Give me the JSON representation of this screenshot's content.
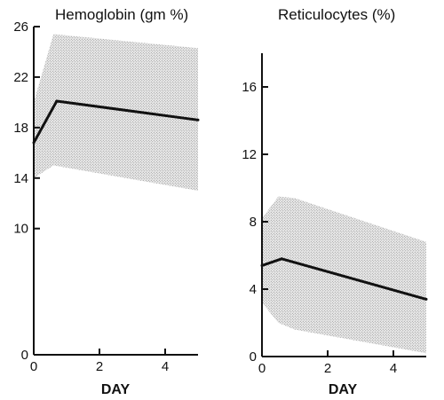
{
  "chart_data": [
    {
      "type": "area",
      "title": "Hemoglobin (gm %)",
      "xlabel": "DAY",
      "ylabel": "",
      "xlim": [
        0,
        5
      ],
      "ylim": [
        0,
        26
      ],
      "xticks": [
        0,
        2,
        4
      ],
      "yticks": [
        0,
        10,
        14,
        18,
        22,
        26
      ],
      "grid": false,
      "series": [
        {
          "x": [
            0,
            0.7,
            5
          ],
          "values": [
            16.8,
            20.1,
            18.6
          ]
        }
      ],
      "band": {
        "x": [
          0,
          0.6,
          5
        ],
        "upper": [
          20.0,
          25.4,
          24.3
        ],
        "lower": [
          14.0,
          15.0,
          13.0
        ]
      }
    },
    {
      "type": "area",
      "title": "Reticulocytes (%)",
      "xlabel": "DAY",
      "ylabel": "",
      "xlim": [
        0,
        5
      ],
      "ylim": [
        0,
        18
      ],
      "xticks": [
        0,
        2,
        4
      ],
      "yticks": [
        0,
        4,
        8,
        12,
        16
      ],
      "grid": false,
      "series": [
        {
          "x": [
            0,
            0.6,
            5
          ],
          "values": [
            5.4,
            5.8,
            3.4
          ]
        }
      ],
      "band": {
        "x": [
          0,
          0.5,
          1,
          5
        ],
        "upper": [
          8.2,
          9.5,
          9.4,
          6.8
        ],
        "lower": [
          3.2,
          2.0,
          1.6,
          0.2
        ]
      }
    }
  ]
}
